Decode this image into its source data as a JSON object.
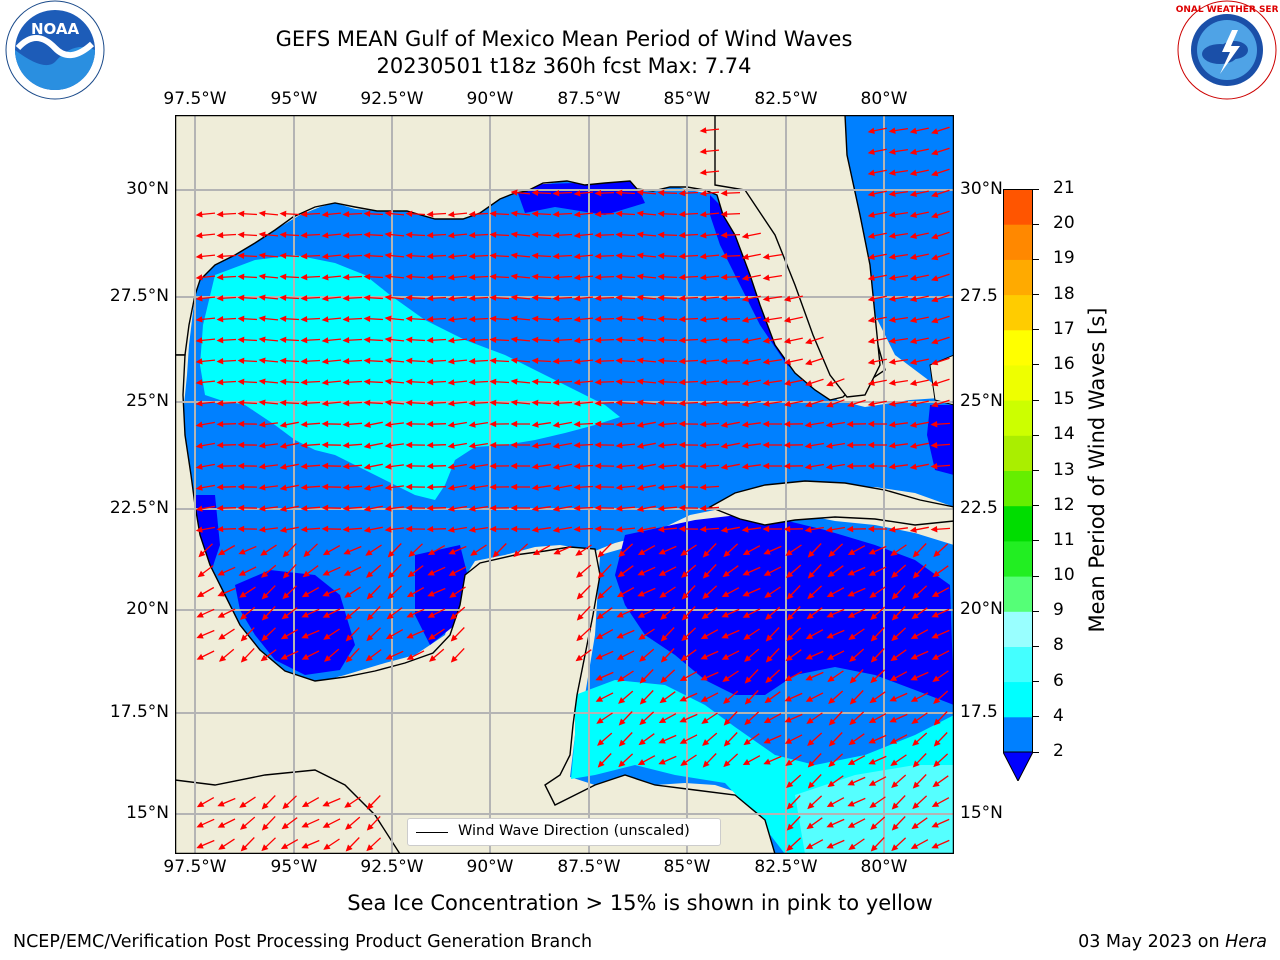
{
  "header": {
    "title_line1": "GEFS MEAN Gulf of Mexico Mean Period of Wind Waves",
    "title_line2": "20230501 t18z 360h fcst   Max: 7.74"
  },
  "logos": {
    "noaa_text": "NOAA",
    "noaa_ring": "NATIONAL OCEANIC AND ATMOSPHERIC ADMINISTRATION · U.S. DEPARTMENT OF COMMERCE",
    "nws_ring": "NATIONAL WEATHER SERVICE"
  },
  "map": {
    "lon_ticks": [
      "97.5°W",
      "95°W",
      "92.5°W",
      "90°W",
      "87.5°W",
      "85°W",
      "82.5°W",
      "80°W"
    ],
    "lat_ticks_left": [
      "30°N",
      "27.5°N",
      "25°N",
      "22.5°N",
      "20°N",
      "17.5°N",
      "15°N"
    ],
    "lat_ticks_right": [
      "30°N",
      "27.5",
      "25°N",
      "22.5",
      "20°N",
      "17.5",
      "15°N"
    ],
    "legend_label": "Wind Wave Direction (unscaled)",
    "colors": {
      "land": "#efedd9",
      "ocean_2_4": "#0080ff",
      "ocean_lt2": "#0000ff",
      "ocean_4_6": "#00ffff",
      "ocean_6_8": "#55ffff",
      "arrow": "#ff0000",
      "grid": "#b4b4b4"
    }
  },
  "colorbar": {
    "label": "Mean Period of Wind Waves [s]",
    "ticks": [
      "2",
      "4",
      "6",
      "8",
      "9",
      "10",
      "11",
      "12",
      "13",
      "14",
      "15",
      "16",
      "17",
      "18",
      "19",
      "20",
      "21"
    ],
    "colors": [
      "#0080ff",
      "#00ffff",
      "#44ffff",
      "#99ffff",
      "#55ff77",
      "#22ee22",
      "#00dd00",
      "#66ee00",
      "#aaee00",
      "#ccff00",
      "#eeff00",
      "#ffff00",
      "#ffcc00",
      "#ffaa00",
      "#ff8800",
      "#ff5500",
      "#ff2200",
      "#ff0000"
    ],
    "extend_color": "#0000ff"
  },
  "caption": "Sea Ice Concentration > 15% is shown in pink to yellow",
  "footer": {
    "left": "NCEP/EMC/Verification Post Processing Product Generation Branch",
    "date": "03 May 2023 on",
    "host": "Hera"
  }
}
